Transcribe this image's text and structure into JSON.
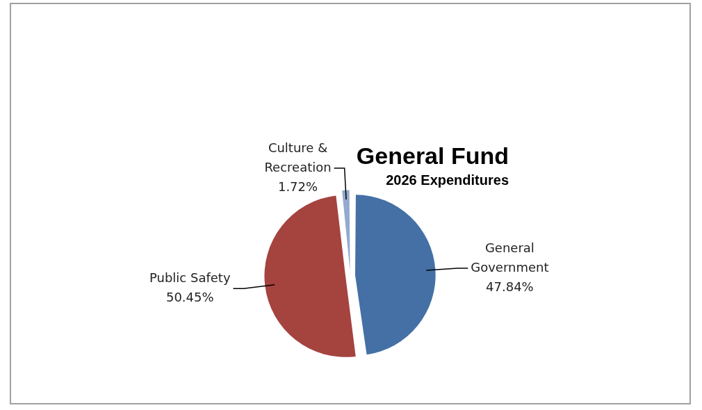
{
  "chart_data": {
    "type": "pie",
    "title": "General Fund",
    "subtitle": "2026 Expenditures",
    "categories": [
      "General Government",
      "Public Safety",
      "Culture & Recreation"
    ],
    "values": [
      47.84,
      50.45,
      1.72
    ],
    "colors": [
      "#4470a6",
      "#a5433f",
      "#93a9cf"
    ],
    "value_labels": [
      "47.84%",
      "50.45%",
      "1.72%"
    ],
    "legend": false
  }
}
